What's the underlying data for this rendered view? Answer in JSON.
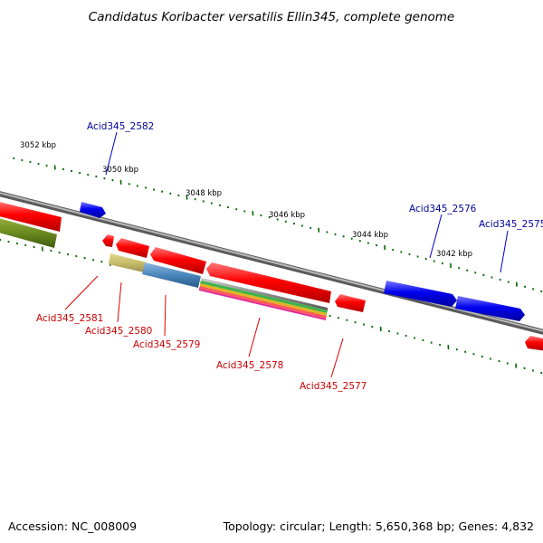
{
  "title": "Candidatus Koribacter versatilis Ellin345, complete genome",
  "footer": {
    "accession": "Accession: NC_008009",
    "summary": "Topology: circular; Length: 5,650,368 bp; Genes: 4,832"
  },
  "colors": {
    "forward_strand": "#0000ee",
    "reverse_strand": "#ee0000",
    "forward_label": "#00009a",
    "reverse_label": "#cc0000",
    "tick": "#006600",
    "backbone": "#888888"
  },
  "kbp_marks": [
    {
      "label": "3052 kbp"
    },
    {
      "label": "3050 kbp"
    },
    {
      "label": "3048 kbp"
    },
    {
      "label": "3046 kbp"
    },
    {
      "label": "3044 kbp"
    },
    {
      "label": "3042 kbp"
    }
  ],
  "genes": [
    {
      "locus": "Acid345_2582",
      "strand": "forward"
    },
    {
      "locus": "Acid345_2581",
      "strand": "reverse"
    },
    {
      "locus": "Acid345_2580",
      "strand": "reverse"
    },
    {
      "locus": "Acid345_2579",
      "strand": "reverse"
    },
    {
      "locus": "Acid345_2578",
      "strand": "reverse"
    },
    {
      "locus": "Acid345_2577",
      "strand": "reverse"
    },
    {
      "locus": "Acid345_2576",
      "strand": "forward"
    },
    {
      "locus": "Acid345_2575",
      "strand": "forward"
    }
  ]
}
